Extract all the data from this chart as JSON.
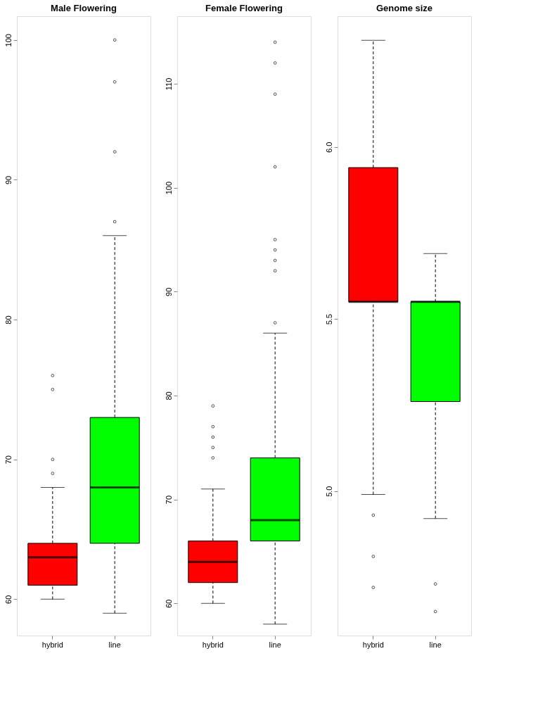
{
  "chart_data": [
    {
      "type": "box",
      "title": "Male Flowering",
      "categories": [
        "hybrid",
        "line"
      ],
      "colors": [
        "#ff0000",
        "#00ff00"
      ],
      "ylim": [
        57.4,
        101.7
      ],
      "yticks": [
        60,
        70,
        80,
        90,
        100
      ],
      "grid": false,
      "boxes": [
        {
          "low": 60,
          "q1": 61,
          "median": 63,
          "q3": 64,
          "high": 68,
          "outliers": [
            69,
            70,
            75,
            76
          ]
        },
        {
          "low": 59,
          "q1": 64,
          "median": 68,
          "q3": 73,
          "high": 86,
          "outliers": [
            87,
            92,
            97,
            100
          ]
        }
      ]
    },
    {
      "type": "box",
      "title": "Female Flowering",
      "categories": [
        "hybrid",
        "line"
      ],
      "colors": [
        "#ff0000",
        "#00ff00"
      ],
      "ylim": [
        56.9,
        116.5
      ],
      "yticks": [
        60,
        70,
        80,
        90,
        100,
        110
      ],
      "grid": false,
      "boxes": [
        {
          "low": 60,
          "q1": 62,
          "median": 64,
          "q3": 66,
          "high": 71,
          "outliers": [
            74,
            75,
            76,
            77,
            79
          ]
        },
        {
          "low": 58,
          "q1": 66,
          "median": 68,
          "q3": 74,
          "high": 86,
          "outliers": [
            87,
            92,
            93,
            94,
            95,
            102,
            109,
            112,
            114
          ]
        }
      ]
    },
    {
      "type": "box",
      "title": "Genome size",
      "categories": [
        "hybrid",
        "line"
      ],
      "colors": [
        "#ff0000",
        "#00ff00"
      ],
      "ylim": [
        4.58,
        6.38
      ],
      "yticks": [
        {
          "value": 5,
          "label": "5.0"
        },
        5.5,
        {
          "value": 6,
          "label": "6.0"
        }
      ],
      "grid": false,
      "boxes": [
        {
          "low": 4.99,
          "q1": 5.55,
          "median": 5.55,
          "q3": 5.94,
          "high": 6.31,
          "outliers": [
            4.93,
            4.81,
            4.72
          ]
        },
        {
          "low": 4.92,
          "q1": 5.26,
          "median": 5.55,
          "q3": 5.55,
          "high": 5.69,
          "outliers": [
            4.73,
            4.65
          ]
        }
      ]
    }
  ]
}
